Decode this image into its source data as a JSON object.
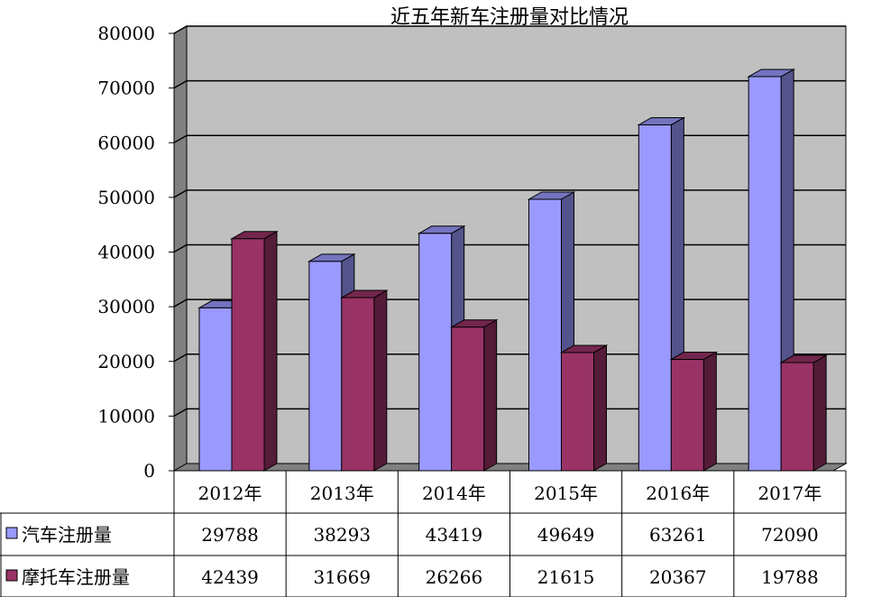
{
  "chart_data": {
    "type": "bar",
    "title": "近五年新车注册量对比情况",
    "categories": [
      "2012年",
      "2013年",
      "2014年",
      "2015年",
      "2016年",
      "2017年"
    ],
    "series": [
      {
        "name": "汽车注册量",
        "color": "#9999ff",
        "values": [
          29788,
          38293,
          43419,
          49649,
          63261,
          72090
        ]
      },
      {
        "name": "摩托车注册量",
        "color": "#993366",
        "values": [
          42439,
          31669,
          26266,
          21615,
          20367,
          19788
        ]
      }
    ],
    "yticks": [
      "0",
      "10000",
      "20000",
      "30000",
      "40000",
      "50000",
      "60000",
      "70000",
      "80000"
    ],
    "ylim": [
      0,
      80000
    ],
    "grid": true,
    "legend": "data-table",
    "wall_color": "#c0c0c0"
  }
}
